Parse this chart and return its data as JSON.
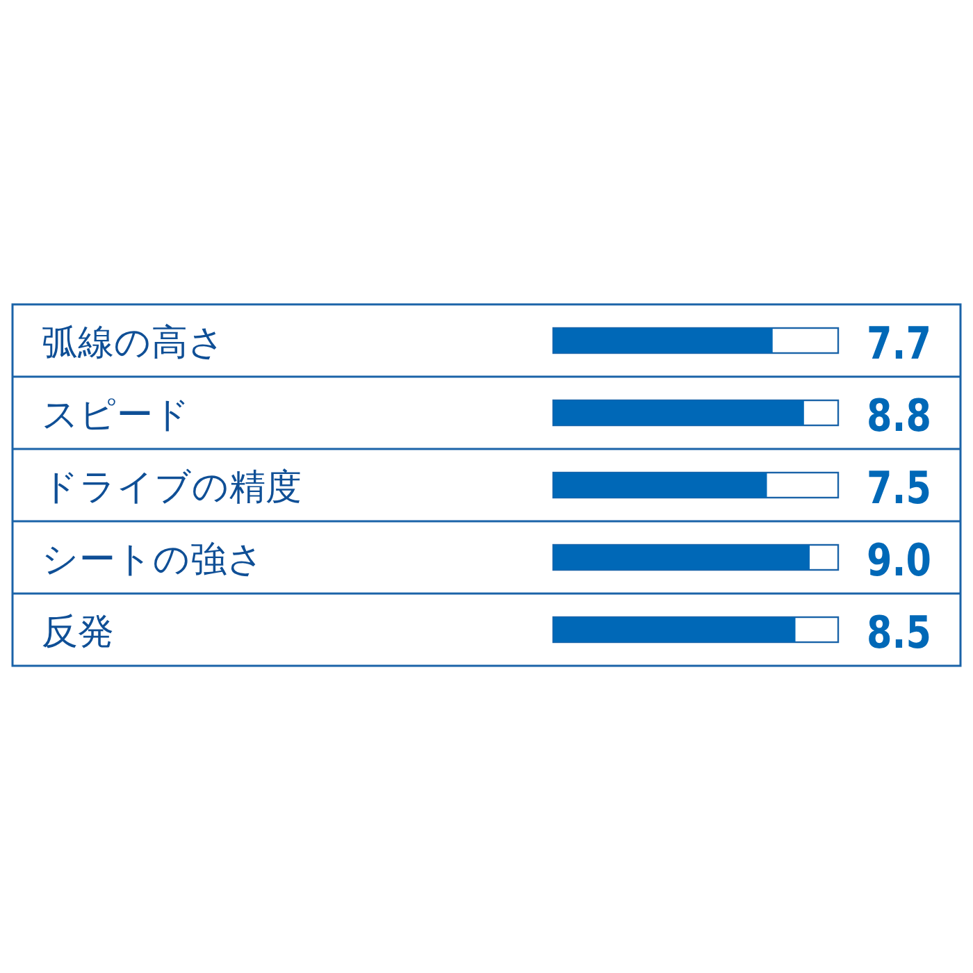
{
  "chart_data": {
    "type": "bar",
    "orientation": "horizontal",
    "categories": [
      "弧線の高さ",
      "スピード",
      "ドライブの精度",
      "シートの強さ",
      "反発"
    ],
    "values": [
      7.7,
      8.8,
      7.5,
      9.0,
      8.5
    ],
    "value_labels": [
      "7.7",
      "8.8",
      "7.5",
      "9.0",
      "8.5"
    ],
    "color": "#0068b7",
    "xlim": [
      0,
      10
    ],
    "tick_labels": false
  }
}
